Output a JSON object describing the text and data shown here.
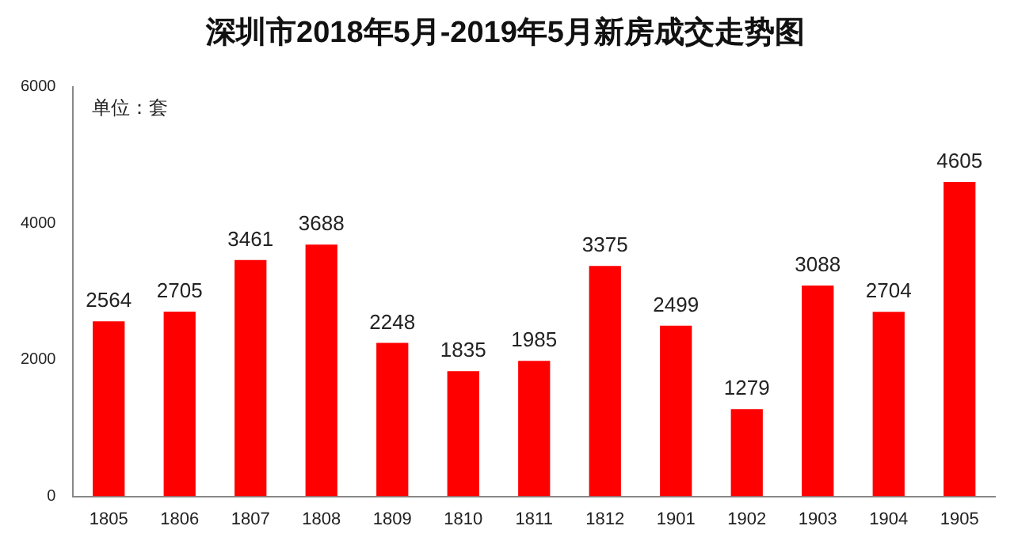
{
  "chart_data": {
    "type": "bar",
    "title": "深圳市2018年5月-2019年5月新房成交走势图",
    "categories": [
      "1805",
      "1806",
      "1807",
      "1808",
      "1809",
      "1810",
      "1811",
      "1812",
      "1901",
      "1902",
      "1903",
      "1904",
      "1905"
    ],
    "values": [
      2564,
      2705,
      3461,
      3688,
      2248,
      1835,
      1985,
      3375,
      2499,
      1279,
      3088,
      2704,
      4605
    ],
    "color": "#ff0000",
    "ylim": [
      0,
      6000
    ],
    "yticks": [
      0,
      2000,
      4000,
      6000
    ],
    "grid": false,
    "legend": false,
    "data_labels": true,
    "annotations": [
      "单位：套"
    ]
  }
}
